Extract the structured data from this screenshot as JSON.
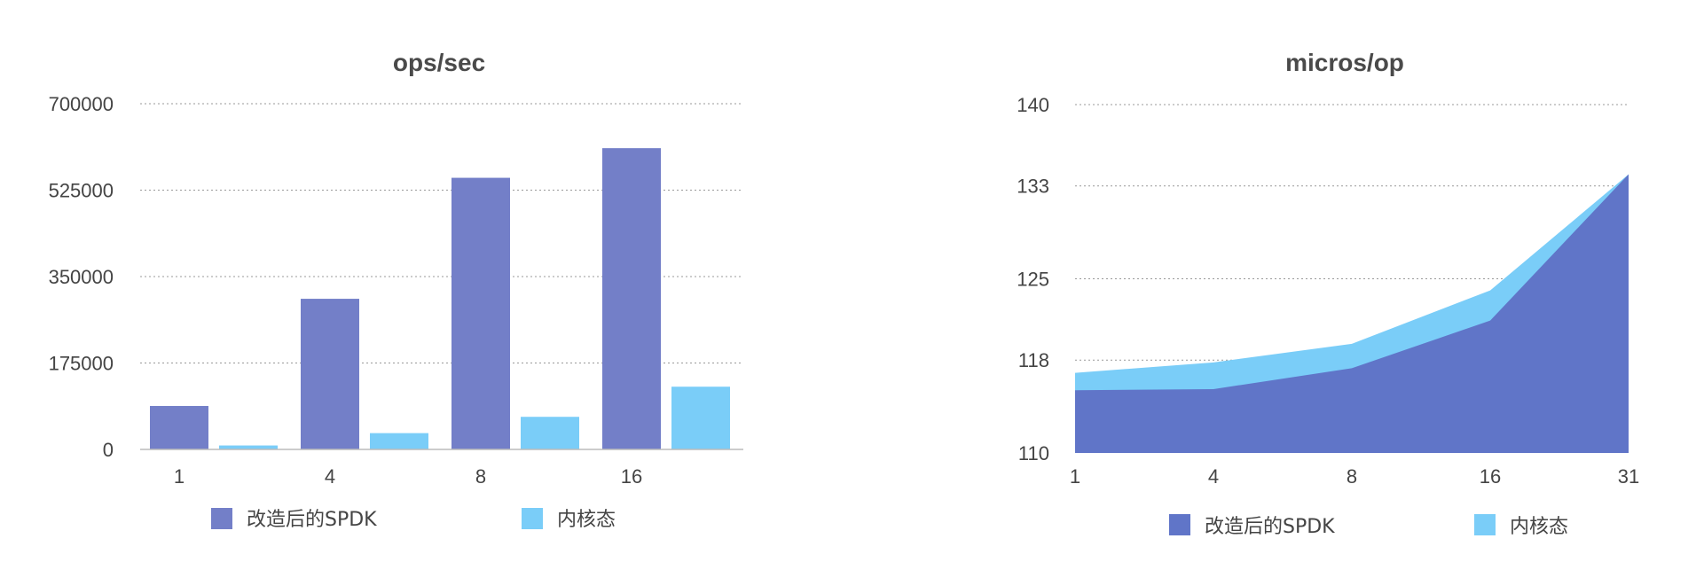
{
  "chart_data": [
    {
      "type": "bar",
      "title": "ops/sec",
      "categories": [
        "1",
        "4",
        "8",
        "16"
      ],
      "series": [
        {
          "name": "改造后的SPDK",
          "values": [
            88000,
            305000,
            550000,
            610000
          ],
          "color": "#737fc8"
        },
        {
          "name": "内核态",
          "values": [
            8000,
            33000,
            66000,
            127000
          ],
          "color": "#7acdf8"
        }
      ],
      "ylim": [
        0,
        700000
      ],
      "yticks": [
        "0",
        "175000",
        "350000",
        "525000",
        "700000"
      ],
      "grid": true,
      "legend": "bottom"
    },
    {
      "type": "area",
      "title": "micros/op",
      "x": [
        "1",
        "4",
        "8",
        "16",
        "31"
      ],
      "series": [
        {
          "name": "改造后的SPDK",
          "values": [
            115.4,
            115.5,
            117.3,
            121.4,
            134.0
          ],
          "color": "#6075c8"
        },
        {
          "name": "内核态",
          "values": [
            116.9,
            117.8,
            119.4,
            124.0,
            134.0
          ],
          "color": "#7acdf8"
        }
      ],
      "ylim": [
        110,
        140
      ],
      "yticks": [
        "110",
        "118",
        "125",
        "133",
        "140"
      ],
      "grid": true,
      "legend": "bottom"
    }
  ]
}
